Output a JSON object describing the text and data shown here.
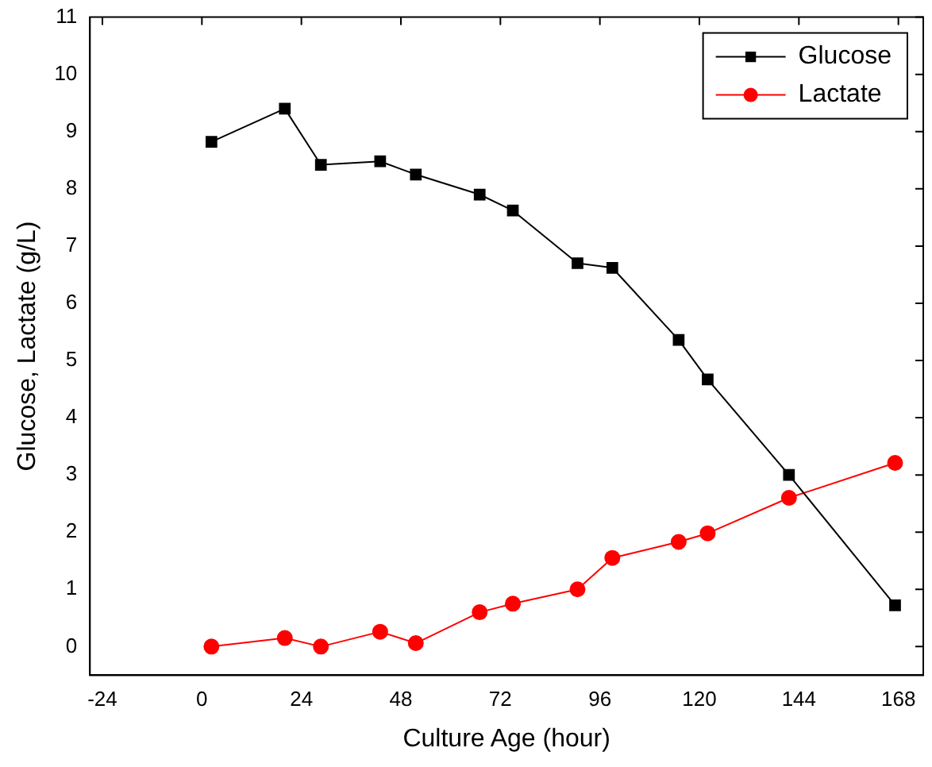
{
  "chart_data": {
    "type": "line",
    "xlabel": "Culture Age (hour)",
    "ylabel": "Glucose, Lactate (g/L)",
    "xlim": [
      -27,
      174
    ],
    "xticks": [
      -24,
      0,
      24,
      48,
      72,
      96,
      120,
      144,
      168
    ],
    "ylim": [
      -0.5,
      11
    ],
    "yticks": [
      0,
      1,
      2,
      3,
      4,
      5,
      6,
      7,
      8,
      9,
      10,
      11
    ],
    "grid": false,
    "legend": "top right",
    "line_style": "solid",
    "x": [
      2.3,
      20,
      28.7,
      43,
      51.6,
      67,
      75,
      90.6,
      99,
      115,
      122,
      141.6,
      167.2
    ],
    "series": [
      {
        "name": "Glucose",
        "color": "#000000",
        "marker": "square",
        "values": [
          8.82,
          9.4,
          8.42,
          8.48,
          8.25,
          7.9,
          7.62,
          6.7,
          6.62,
          5.36,
          4.67,
          3.0,
          0.72
        ]
      },
      {
        "name": "Lactate",
        "color": "#ff0000",
        "marker": "circle",
        "values": [
          0,
          0.15,
          0.0,
          0.26,
          0.06,
          0.6,
          0.75,
          1.0,
          1.55,
          1.83,
          1.98,
          2.6,
          3.21
        ]
      }
    ]
  }
}
